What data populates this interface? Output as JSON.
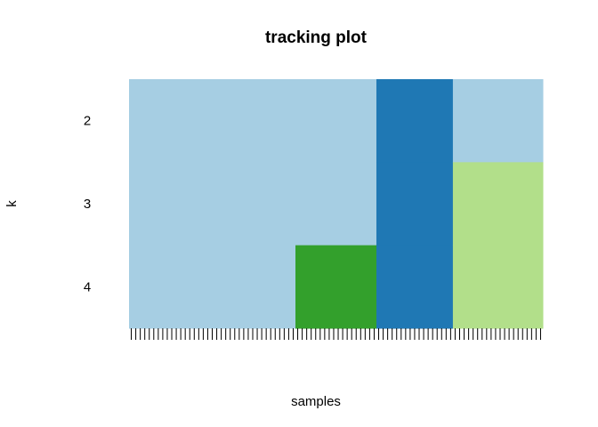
{
  "chart_data": {
    "type": "heatmap",
    "title": "tracking plot",
    "xlabel": "samples",
    "ylabel": "k",
    "rows": [
      "2",
      "3",
      "4"
    ],
    "n_samples": 92,
    "segments": [
      {
        "start": 0,
        "end": 37,
        "clusters": [
          "light-blue",
          "light-blue",
          "light-blue"
        ]
      },
      {
        "start": 37,
        "end": 55,
        "clusters": [
          "light-blue",
          "light-blue",
          "green"
        ]
      },
      {
        "start": 55,
        "end": 72,
        "clusters": [
          "dark-blue",
          "dark-blue",
          "dark-blue"
        ]
      },
      {
        "start": 72,
        "end": 92,
        "clusters": [
          "light-blue",
          "light-green",
          "light-green"
        ]
      }
    ],
    "colors": {
      "light-blue": "#A6CEE3",
      "dark-blue": "#1F78B4",
      "green": "#33A02C",
      "light-green": "#B2DF8A"
    }
  }
}
